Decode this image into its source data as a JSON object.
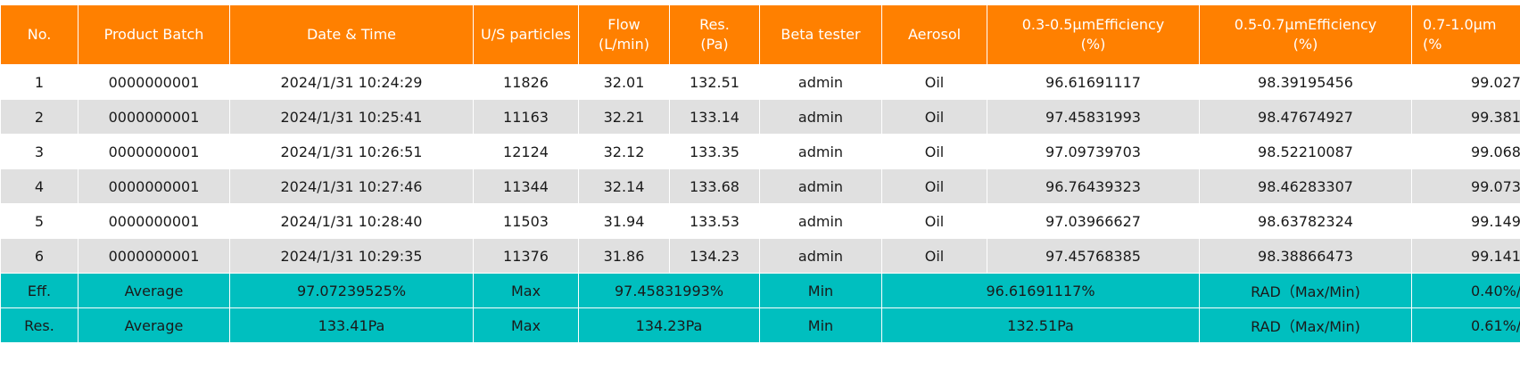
{
  "header": [
    "No.",
    "Product Batch",
    "Date & Time",
    "U/S particles",
    "Flow\n(L/min)",
    "Res.\n(Pa)",
    "Beta tester",
    "Aerosol",
    "0.3-0.5μmEfficiency\n(%)",
    "0.5-0.7μmEfficiency\n(%)",
    "0.7-1.0μm\n(%"
  ],
  "rows": [
    [
      "1",
      "0000000001",
      "2024/1/31 10:24:29",
      "11826",
      "32.01",
      "132.51",
      "admin",
      "Oil",
      "96.61691117",
      "98.39195456",
      "99.027"
    ],
    [
      "2",
      "0000000001",
      "2024/1/31 10:25:41",
      "11163",
      "32.21",
      "133.14",
      "admin",
      "Oil",
      "97.45831993",
      "98.47674927",
      "99.381"
    ],
    [
      "3",
      "0000000001",
      "2024/1/31 10:26:51",
      "12124",
      "32.12",
      "133.35",
      "admin",
      "Oil",
      "97.09739703",
      "98.52210087",
      "99.068"
    ],
    [
      "4",
      "0000000001",
      "2024/1/31 10:27:46",
      "11344",
      "32.14",
      "133.68",
      "admin",
      "Oil",
      "96.76439323",
      "98.46283307",
      "99.073"
    ],
    [
      "5",
      "0000000001",
      "2024/1/31 10:28:40",
      "11503",
      "31.94",
      "133.53",
      "admin",
      "Oil",
      "97.03966627",
      "98.63782324",
      "99.149"
    ],
    [
      "6",
      "0000000001",
      "2024/1/31 10:29:35",
      "11376",
      "31.86",
      "134.23",
      "admin",
      "Oil",
      "97.45768385",
      "98.38866473",
      "99.141"
    ]
  ],
  "summary": [
    [
      "Eff.",
      "Average",
      "97.07239525%",
      "Max",
      "97.45831993%",
      "Min",
      "96.61691117%",
      "RAD（Max/Min)",
      "0.40%/"
    ],
    [
      "Res.",
      "Average",
      "133.41Pa",
      "Max",
      "134.23Pa",
      "Min",
      "132.51Pa",
      "RAD（Max/Min)",
      "0.61%/"
    ]
  ]
}
